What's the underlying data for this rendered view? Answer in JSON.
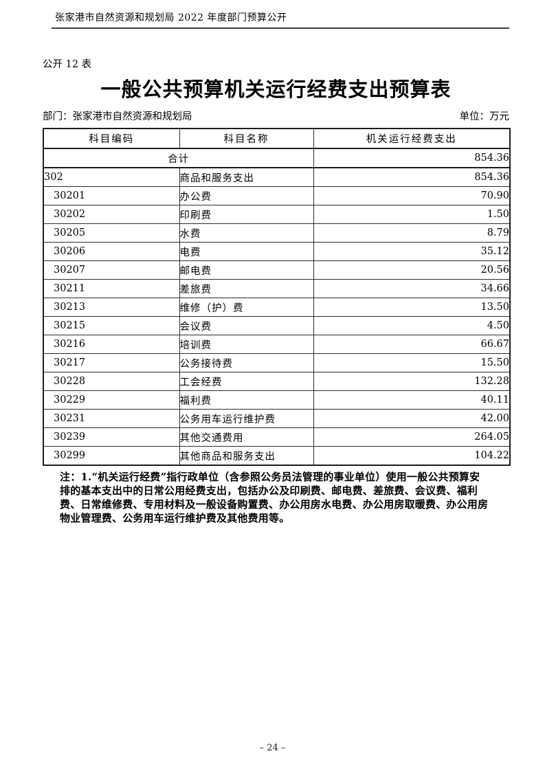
{
  "page": {
    "header_title": "张家港市自然资源和规划局 2022 年度部门预算公开",
    "sheet_label": "公开 12 表",
    "title": "一般公共预算机关运行经费支出预算表",
    "department": "部门：张家港市自然资源和规划局",
    "unit": "单位：万元",
    "page_number": "– 24 –"
  },
  "table": {
    "columns": [
      "科目编码",
      "科目名称",
      "机关运行经费支出"
    ],
    "total_row": {
      "label": "合计",
      "value": "854.36"
    },
    "rows": [
      {
        "code": "302",
        "name": "商品和服务支出",
        "value": "854.36",
        "level": 1
      },
      {
        "code": "30201",
        "name": "办公费",
        "value": "70.90",
        "level": 2
      },
      {
        "code": "30202",
        "name": "印刷费",
        "value": "1.50",
        "level": 2
      },
      {
        "code": "30205",
        "name": "水费",
        "value": "8.79",
        "level": 2
      },
      {
        "code": "30206",
        "name": "电费",
        "value": "35.12",
        "level": 2
      },
      {
        "code": "30207",
        "name": "邮电费",
        "value": "20.56",
        "level": 2
      },
      {
        "code": "30211",
        "name": "差旅费",
        "value": "34.66",
        "level": 2
      },
      {
        "code": "30213",
        "name": "维修（护）费",
        "value": "13.50",
        "level": 2
      },
      {
        "code": "30215",
        "name": "会议费",
        "value": "4.50",
        "level": 2
      },
      {
        "code": "30216",
        "name": "培训费",
        "value": "66.67",
        "level": 2
      },
      {
        "code": "30217",
        "name": "公务接待费",
        "value": "15.50",
        "level": 2
      },
      {
        "code": "30228",
        "name": "工会经费",
        "value": "132.28",
        "level": 2
      },
      {
        "code": "30229",
        "name": "福利费",
        "value": "40.11",
        "level": 2
      },
      {
        "code": "30231",
        "name": "公务用车运行维护费",
        "value": "42.00",
        "level": 2
      },
      {
        "code": "30239",
        "name": "其他交通费用",
        "value": "264.05",
        "level": 2
      },
      {
        "code": "30299",
        "name": "其他商品和服务支出",
        "value": "104.22",
        "level": 2
      }
    ]
  },
  "note": {
    "lines": [
      "注：1.“机关运行经费”指行政单位（含参照公务员法管理的事业单位）使用一般公共预算安",
      "排的基本支出中的日常公用经费支出，包括办公及印刷费、邮电费、差旅费、会议费、福利",
      "费、日常维修费、专用材料及一般设备购置费、办公用房水电费、办公用房取暖费、办公用房",
      "物业管理费、公务用车运行维护费及其他费用等。"
    ]
  }
}
